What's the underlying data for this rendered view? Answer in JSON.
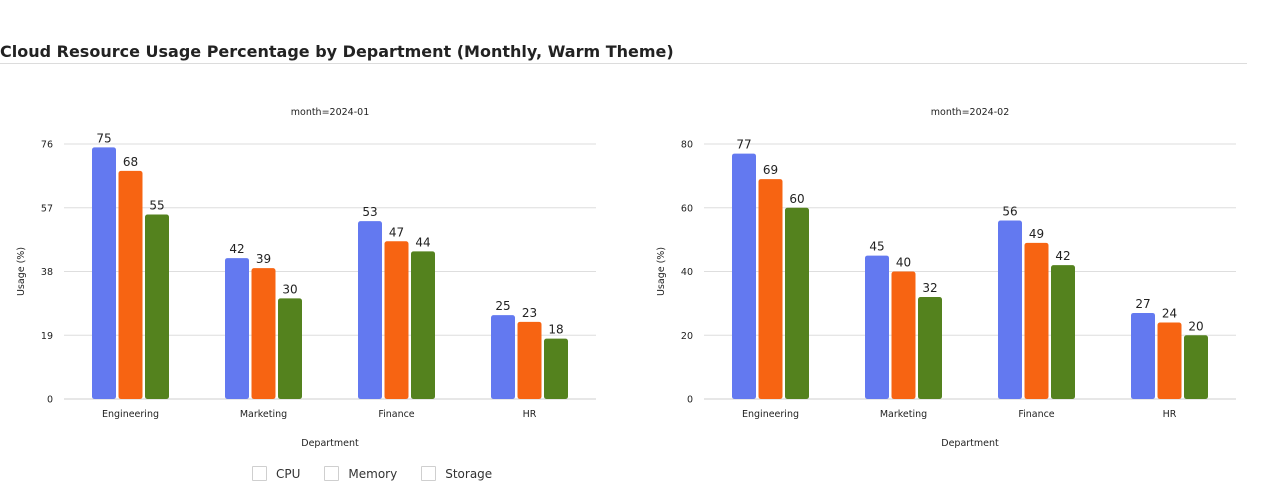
{
  "title": "Cloud Resource Usage Percentage by Department (Monthly, Warm Theme)",
  "colors": {
    "CPU": "#6379f0",
    "Memory": "#f76412",
    "Storage": "#54821e"
  },
  "legend": [
    {
      "label": "CPU",
      "icon": "checkbox-icon"
    },
    {
      "label": "Memory",
      "icon": "checkbox-icon"
    },
    {
      "label": "Storage",
      "icon": "checkbox-icon"
    }
  ],
  "chart_data": [
    {
      "type": "bar",
      "title": "month=2024-01",
      "xlabel": "Department",
      "ylabel": "Usage (%)",
      "categories": [
        "Engineering",
        "Marketing",
        "Finance",
        "HR"
      ],
      "yticks": [
        0,
        19,
        38,
        57,
        76
      ],
      "ylim": [
        0,
        76
      ],
      "grid": true,
      "series": [
        {
          "name": "CPU",
          "values": [
            75,
            42,
            53,
            25
          ]
        },
        {
          "name": "Memory",
          "values": [
            68,
            39,
            47,
            23
          ]
        },
        {
          "name": "Storage",
          "values": [
            55,
            30,
            44,
            18
          ]
        }
      ]
    },
    {
      "type": "bar",
      "title": "month=2024-02",
      "xlabel": "Department",
      "ylabel": "Usage (%)",
      "categories": [
        "Engineering",
        "Marketing",
        "Finance",
        "HR"
      ],
      "yticks": [
        0,
        20,
        40,
        60,
        80
      ],
      "ylim": [
        0,
        80
      ],
      "grid": true,
      "series": [
        {
          "name": "CPU",
          "values": [
            77,
            45,
            56,
            27
          ]
        },
        {
          "name": "Memory",
          "values": [
            69,
            40,
            49,
            24
          ]
        },
        {
          "name": "Storage",
          "values": [
            60,
            32,
            42,
            20
          ]
        }
      ]
    }
  ]
}
